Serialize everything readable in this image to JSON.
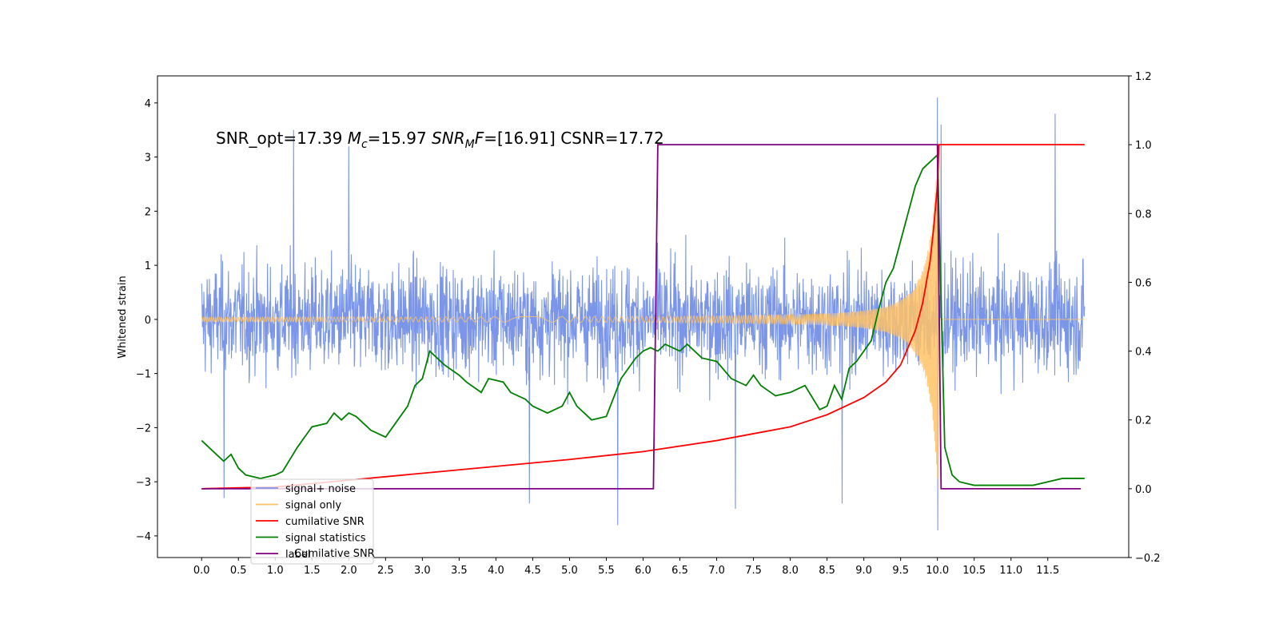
{
  "chart_data": {
    "type": "line",
    "title": "",
    "annotation": {
      "parts": [
        {
          "text": "SNR_opt=17.39 ",
          "style": "normal"
        },
        {
          "text": "M",
          "style": "italic"
        },
        {
          "text": "c",
          "style": "italic-sub"
        },
        {
          "text": "=15.97  ",
          "style": "normal"
        },
        {
          "text": "SNR",
          "style": "italic"
        },
        {
          "text": "M",
          "style": "italic-sub"
        },
        {
          "text": "F",
          "style": "italic"
        },
        {
          "text": "=[16.91] CSNR=17.72",
          "style": "normal"
        }
      ]
    },
    "xlabel": "",
    "ylabel": "Whitened strain",
    "y2label": "",
    "xlim": [
      -0.6,
      12.6
    ],
    "ylim": [
      -4.4,
      4.5
    ],
    "y2lim": [
      -0.2,
      1.2
    ],
    "xticks": [
      "0.0",
      "0.5",
      "1.0",
      "1.5",
      "2.0",
      "2.5",
      "3.0",
      "3.5",
      "4.0",
      "4.5",
      "5.0",
      "5.5",
      "6.0",
      "6.5",
      "7.0",
      "7.5",
      "8.0",
      "8.5",
      "9.0",
      "9.5",
      "10.0",
      "10.5",
      "11.0",
      "11.5"
    ],
    "yticks": [
      "4",
      "3",
      "2",
      "1",
      "0",
      "−1",
      "−2",
      "−3",
      "−4"
    ],
    "y2ticks": [
      "1.2",
      "1.0",
      "0.8",
      "0.6",
      "0.4",
      "0.2",
      "0.0",
      "−0.2"
    ],
    "legend_position": "lower-left",
    "legend": [
      {
        "label": "signal+ noise",
        "color": "#7b96e8"
      },
      {
        "label": "signal only",
        "color": "#ffc266"
      },
      {
        "label": "cumilative SNR",
        "color": "#ff0000"
      },
      {
        "label": "signal statistics",
        "color": "#008000"
      },
      {
        "label": "label",
        "color": "#800080"
      }
    ],
    "legend_overlap_text": "Cumilative SNR",
    "noise_series": {
      "name": "signal+ noise",
      "axis": "left",
      "color": "#7b96e8",
      "x_range": [
        0.0,
        12.0
      ],
      "typical_range": [
        -2.0,
        2.1
      ],
      "max_peaks": [
        [
          1.25,
          3.5
        ],
        [
          10.0,
          4.1
        ],
        [
          10.05,
          3.6
        ],
        [
          11.6,
          3.8
        ],
        [
          2.0,
          3.2
        ]
      ],
      "min_peaks": [
        [
          5.65,
          -3.8
        ],
        [
          10.0,
          -3.9
        ],
        [
          4.45,
          -3.4
        ],
        [
          0.3,
          -3.3
        ],
        [
          7.25,
          -3.5
        ],
        [
          8.7,
          -3.4
        ]
      ]
    },
    "signal_series": {
      "name": "signal only",
      "axis": "left",
      "color": "#ffc266",
      "x_range": [
        0.0,
        12.0
      ],
      "merger_time": 10.02,
      "peak_amplitude": 3.3
    },
    "series": [
      {
        "name": "cumilative SNR",
        "axis": "right",
        "color": "#ff0000",
        "x": [
          0.0,
          1.0,
          2.0,
          3.0,
          4.0,
          5.0,
          6.0,
          7.0,
          7.5,
          8.0,
          8.5,
          9.0,
          9.3,
          9.5,
          9.7,
          9.8,
          9.9,
          9.95,
          10.0,
          10.02,
          12.0
        ],
        "values": [
          0.0,
          0.005,
          0.025,
          0.045,
          0.065,
          0.085,
          0.108,
          0.14,
          0.16,
          0.18,
          0.215,
          0.265,
          0.31,
          0.36,
          0.46,
          0.54,
          0.66,
          0.76,
          0.88,
          1.0,
          1.0
        ]
      },
      {
        "name": "signal statistics",
        "axis": "right",
        "color": "#008000",
        "x": [
          0.0,
          0.1,
          0.2,
          0.3,
          0.4,
          0.5,
          0.6,
          0.8,
          1.0,
          1.1,
          1.3,
          1.5,
          1.7,
          1.8,
          1.9,
          2.0,
          2.1,
          2.3,
          2.5,
          2.6,
          2.8,
          2.9,
          3.0,
          3.1,
          3.2,
          3.3,
          3.5,
          3.6,
          3.8,
          3.9,
          4.1,
          4.2,
          4.4,
          4.5,
          4.7,
          4.9,
          5.0,
          5.1,
          5.3,
          5.5,
          5.7,
          5.9,
          6.0,
          6.1,
          6.2,
          6.3,
          6.5,
          6.6,
          6.8,
          7.0,
          7.2,
          7.4,
          7.5,
          7.6,
          7.8,
          8.0,
          8.2,
          8.4,
          8.5,
          8.6,
          8.7,
          8.8,
          8.9,
          9.0,
          9.1,
          9.2,
          9.3,
          9.4,
          9.5,
          9.6,
          9.7,
          9.8,
          9.9,
          10.0,
          10.1,
          10.2,
          10.3,
          10.5,
          10.8,
          11.0,
          11.3,
          11.5,
          11.7,
          11.9,
          12.0
        ],
        "values": [
          0.14,
          0.12,
          0.1,
          0.08,
          0.1,
          0.06,
          0.04,
          0.03,
          0.04,
          0.05,
          0.12,
          0.18,
          0.19,
          0.22,
          0.2,
          0.22,
          0.21,
          0.17,
          0.15,
          0.18,
          0.24,
          0.3,
          0.32,
          0.4,
          0.38,
          0.36,
          0.33,
          0.31,
          0.28,
          0.32,
          0.31,
          0.28,
          0.26,
          0.24,
          0.22,
          0.24,
          0.28,
          0.24,
          0.2,
          0.21,
          0.32,
          0.38,
          0.4,
          0.41,
          0.4,
          0.42,
          0.4,
          0.42,
          0.38,
          0.37,
          0.32,
          0.3,
          0.33,
          0.3,
          0.27,
          0.28,
          0.3,
          0.23,
          0.24,
          0.3,
          0.26,
          0.35,
          0.37,
          0.4,
          0.43,
          0.52,
          0.6,
          0.64,
          0.72,
          0.8,
          0.88,
          0.93,
          0.95,
          0.97,
          0.12,
          0.04,
          0.02,
          0.01,
          0.01,
          0.01,
          0.01,
          0.02,
          0.03,
          0.03,
          0.03
        ]
      },
      {
        "name": "label",
        "axis": "right",
        "color": "#800080",
        "x": [
          0.0,
          6.14,
          6.2,
          10.0,
          10.05,
          11.95
        ],
        "values": [
          0.0,
          0.0,
          1.0,
          1.0,
          0.0,
          0.0
        ]
      }
    ]
  }
}
